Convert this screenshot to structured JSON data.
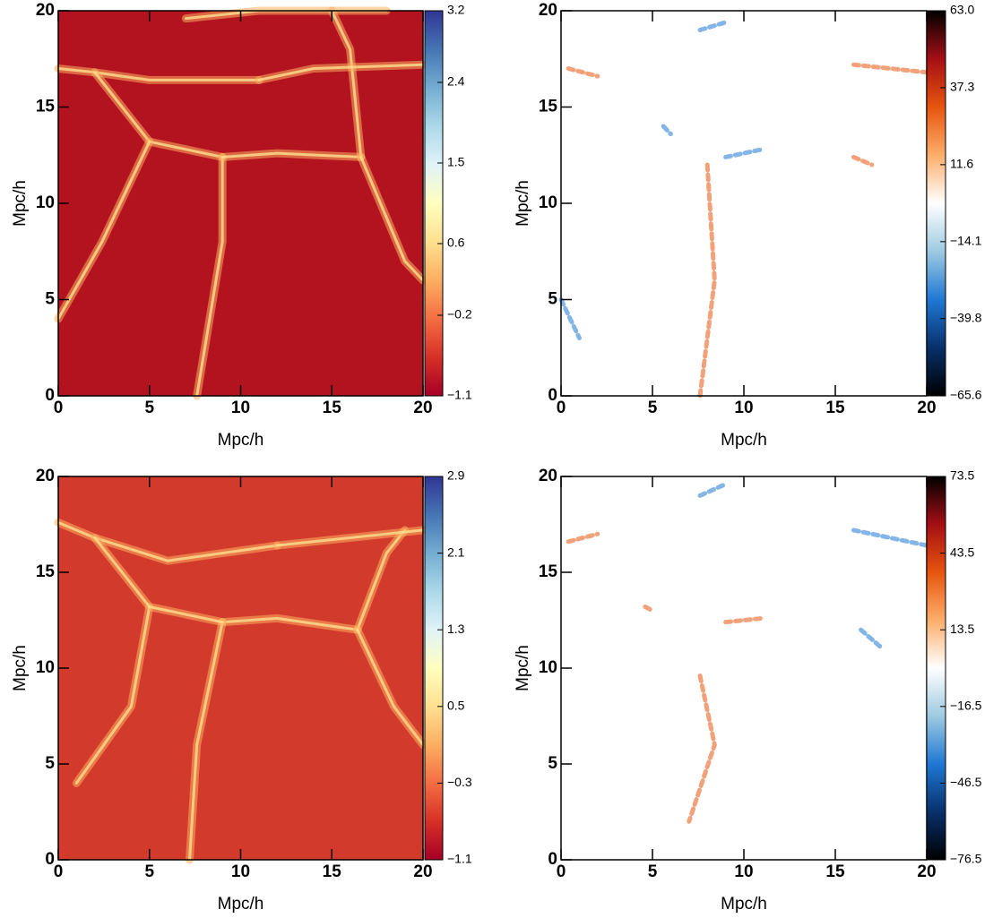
{
  "chart_data": [
    {
      "type": "heatmap",
      "xlabel": "Mpc/h",
      "ylabel": "Mpc/h",
      "xlim": [
        0,
        20
      ],
      "ylim": [
        0,
        20
      ],
      "xticks": [
        0,
        5,
        10,
        15,
        20
      ],
      "yticks": [
        0,
        5,
        10,
        15,
        20
      ],
      "background": "#b3121f",
      "colormap": [
        "#a50026",
        "#d73027",
        "#f46d43",
        "#fdae61",
        "#fee090",
        "#ffffbf",
        "#e0f3f8",
        "#abd9e9",
        "#74add1",
        "#4575b4",
        "#313695"
      ],
      "clim": [
        -1.1,
        3.2
      ],
      "cticks": [
        3.2,
        2.4,
        1.5,
        0.6,
        {
          "value": -0.2,
          "label": "−0.2"
        },
        {
          "value": -1.1,
          "label": "−1.1"
        }
      ]
    },
    {
      "type": "heatmap",
      "xlabel": "Mpc/h",
      "ylabel": "Mpc/h",
      "xlim": [
        0,
        20
      ],
      "ylim": [
        0,
        20
      ],
      "xticks": [
        0,
        5,
        10,
        15,
        20
      ],
      "yticks": [
        0,
        5,
        10,
        15,
        20
      ],
      "background": "#ffffff",
      "colormap": [
        "#000000",
        "#08306b",
        "#1f78d4",
        "#9ecae1",
        "#ffffff",
        "#fdae6b",
        "#e6550d",
        "#a50f15",
        "#000000"
      ],
      "clim": [
        -65.6,
        63
      ],
      "cticks": [
        {
          "value": 63,
          "label": "63.0"
        },
        37.3,
        11.6,
        {
          "value": -14.1,
          "label": "−14.1"
        },
        {
          "value": -39.8,
          "label": "−39.8"
        },
        {
          "value": -65.6,
          "label": "−65.6"
        }
      ]
    },
    {
      "type": "heatmap",
      "xlabel": "Mpc/h",
      "ylabel": "Mpc/h",
      "xlim": [
        0,
        20
      ],
      "ylim": [
        0,
        20
      ],
      "xticks": [
        0,
        5,
        10,
        15,
        20
      ],
      "yticks": [
        0,
        5,
        10,
        15,
        20
      ],
      "background": "#d23a2c",
      "colormap": [
        "#a50026",
        "#d73027",
        "#f46d43",
        "#fdae61",
        "#fee090",
        "#ffffbf",
        "#e0f3f8",
        "#abd9e9",
        "#74add1",
        "#4575b4",
        "#313695"
      ],
      "clim": [
        -1.1,
        2.9
      ],
      "cticks": [
        2.9,
        2.1,
        1.3,
        0.5,
        {
          "value": -0.3,
          "label": "−0.3"
        },
        {
          "value": -1.1,
          "label": "−1.1"
        }
      ]
    },
    {
      "type": "heatmap",
      "xlabel": "Mpc/h",
      "ylabel": "Mpc/h",
      "xlim": [
        0,
        20
      ],
      "ylim": [
        0,
        20
      ],
      "xticks": [
        0,
        5,
        10,
        15,
        20
      ],
      "yticks": [
        0,
        5,
        10,
        15,
        20
      ],
      "background": "#ffffff",
      "colormap": [
        "#000000",
        "#08306b",
        "#1f78d4",
        "#9ecae1",
        "#ffffff",
        "#fdae6b",
        "#e6550d",
        "#a50f15",
        "#000000"
      ],
      "clim": [
        -76.5,
        73.5
      ],
      "cticks": [
        73.5,
        43.5,
        13.5,
        {
          "value": -16.5,
          "label": "−16.5"
        },
        {
          "value": -46.5,
          "label": "−46.5"
        },
        {
          "value": -76.5,
          "label": "−76.5"
        }
      ]
    }
  ]
}
